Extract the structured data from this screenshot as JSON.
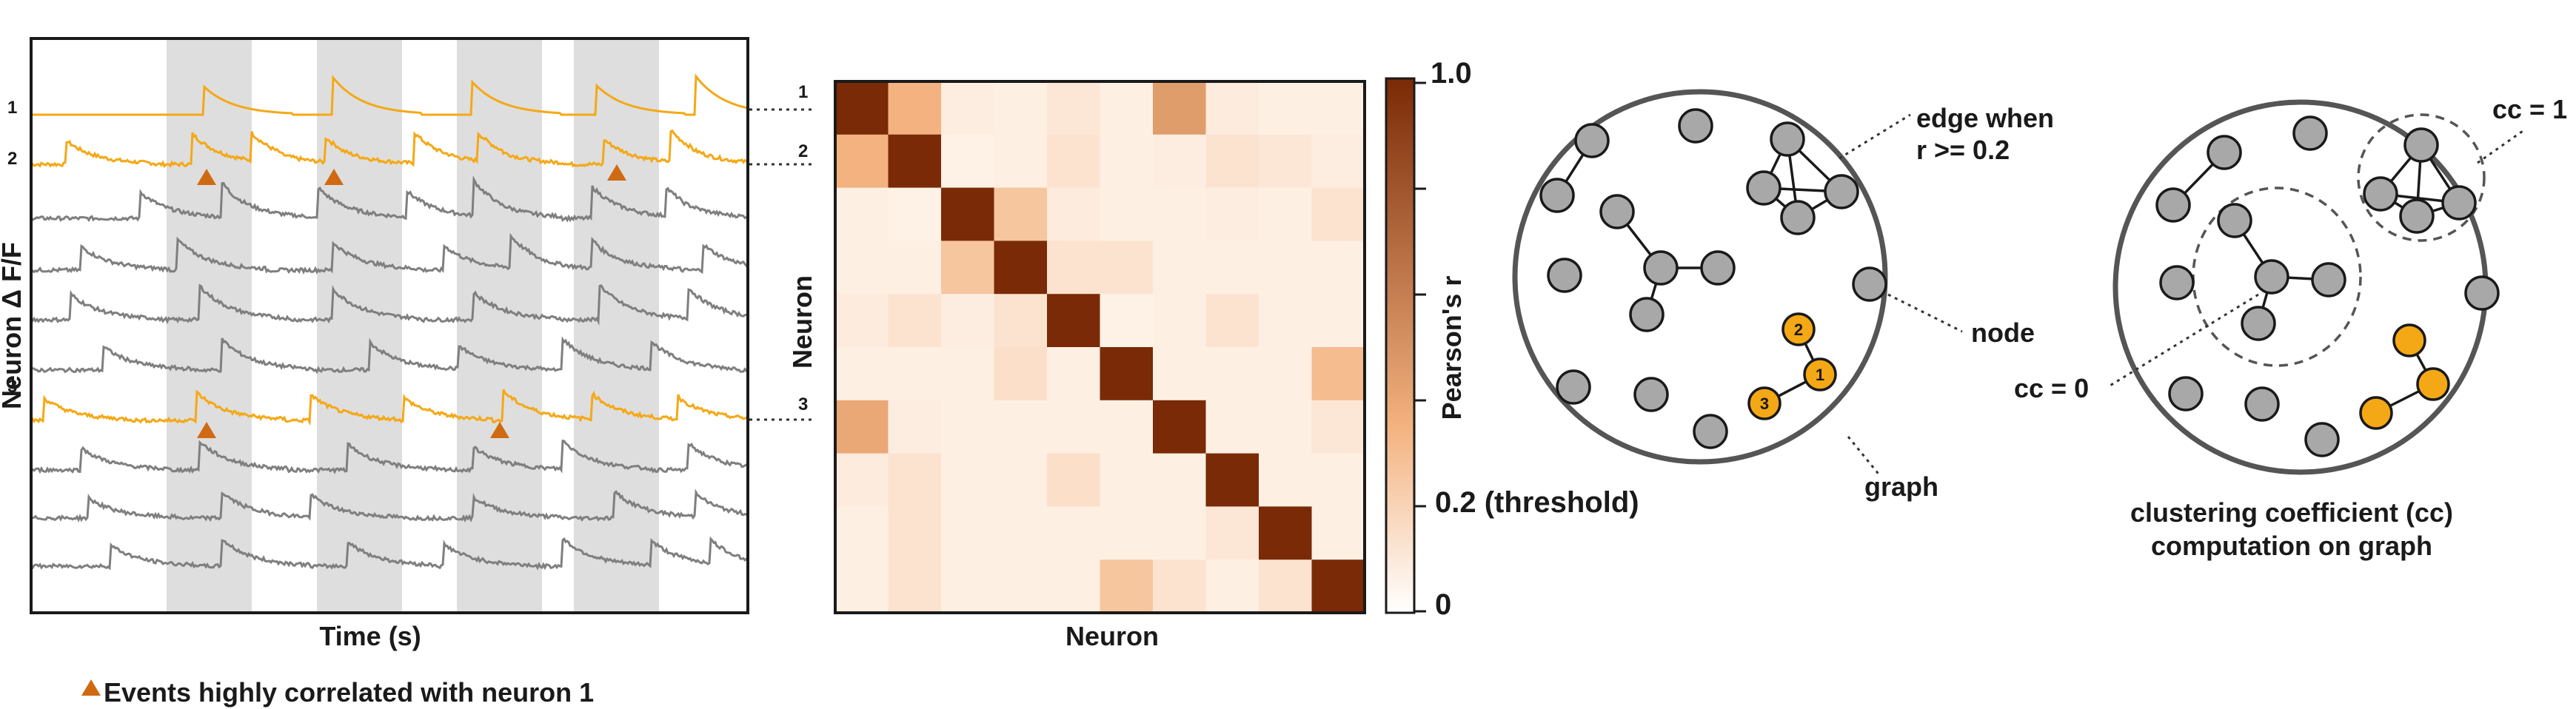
{
  "colors": {
    "highlight": "#F5A815",
    "gray_trace": "#7f7f7f",
    "event_marker": "#CF6A13",
    "shade": "#dedede",
    "node_gray": "#a8a8a8",
    "matrix_high": "#7a2a06",
    "matrix_low": "#fff5ec"
  },
  "traces_panel": {
    "y_label": "Neuron Δ F/F",
    "x_label": "Time (s)",
    "row_labels": [
      "1",
      "2",
      "3"
    ],
    "legend": "Events highly correlated with neuron 1",
    "marker_icon": "triangle-icon"
  },
  "matrix_panel": {
    "x_label": "Neuron",
    "y_label": "Neuron",
    "row_labels": [
      "1",
      "2",
      "3"
    ],
    "colorbar": {
      "title": "Pearson's r",
      "tick_top": "1.0",
      "tick_threshold": "0.2 (threshold)",
      "tick_bottom": "0"
    }
  },
  "graph_panel": {
    "edge_label_line1": "edge when",
    "edge_label_line2": "r >= 0.2",
    "node_label": "node",
    "graph_label": "graph",
    "node_numbers": [
      "1",
      "2",
      "3"
    ]
  },
  "cc_panel": {
    "cc_one": "cc = 1",
    "cc_zero": "cc = 0",
    "caption_line1": "clustering coefficient (cc)",
    "caption_line2": "computation on graph"
  },
  "chart_data": {
    "type": "heatmap",
    "value_range": [
      0,
      1.0
    ],
    "threshold": 0.2,
    "matrix": [
      [
        1.0,
        0.35,
        0.05,
        0.04,
        0.08,
        0.04,
        0.45,
        0.06,
        0.04,
        0.04
      ],
      [
        0.35,
        1.0,
        0.03,
        0.04,
        0.1,
        0.04,
        0.05,
        0.1,
        0.08,
        0.05
      ],
      [
        0.04,
        0.03,
        1.0,
        0.25,
        0.06,
        0.04,
        0.04,
        0.05,
        0.04,
        0.1
      ],
      [
        0.04,
        0.04,
        0.25,
        1.0,
        0.1,
        0.1,
        0.04,
        0.04,
        0.04,
        0.04
      ],
      [
        0.06,
        0.1,
        0.05,
        0.1,
        1.0,
        0.03,
        0.04,
        0.1,
        0.04,
        0.04
      ],
      [
        0.04,
        0.04,
        0.04,
        0.12,
        0.04,
        1.0,
        0.04,
        0.04,
        0.04,
        0.3
      ],
      [
        0.4,
        0.05,
        0.04,
        0.04,
        0.04,
        0.04,
        1.0,
        0.04,
        0.04,
        0.08
      ],
      [
        0.06,
        0.1,
        0.04,
        0.04,
        0.12,
        0.04,
        0.04,
        1.0,
        0.04,
        0.04
      ],
      [
        0.04,
        0.1,
        0.04,
        0.04,
        0.04,
        0.04,
        0.04,
        0.08,
        1.0,
        0.04
      ],
      [
        0.04,
        0.1,
        0.04,
        0.04,
        0.04,
        0.25,
        0.1,
        0.04,
        0.1,
        1.0
      ]
    ]
  }
}
